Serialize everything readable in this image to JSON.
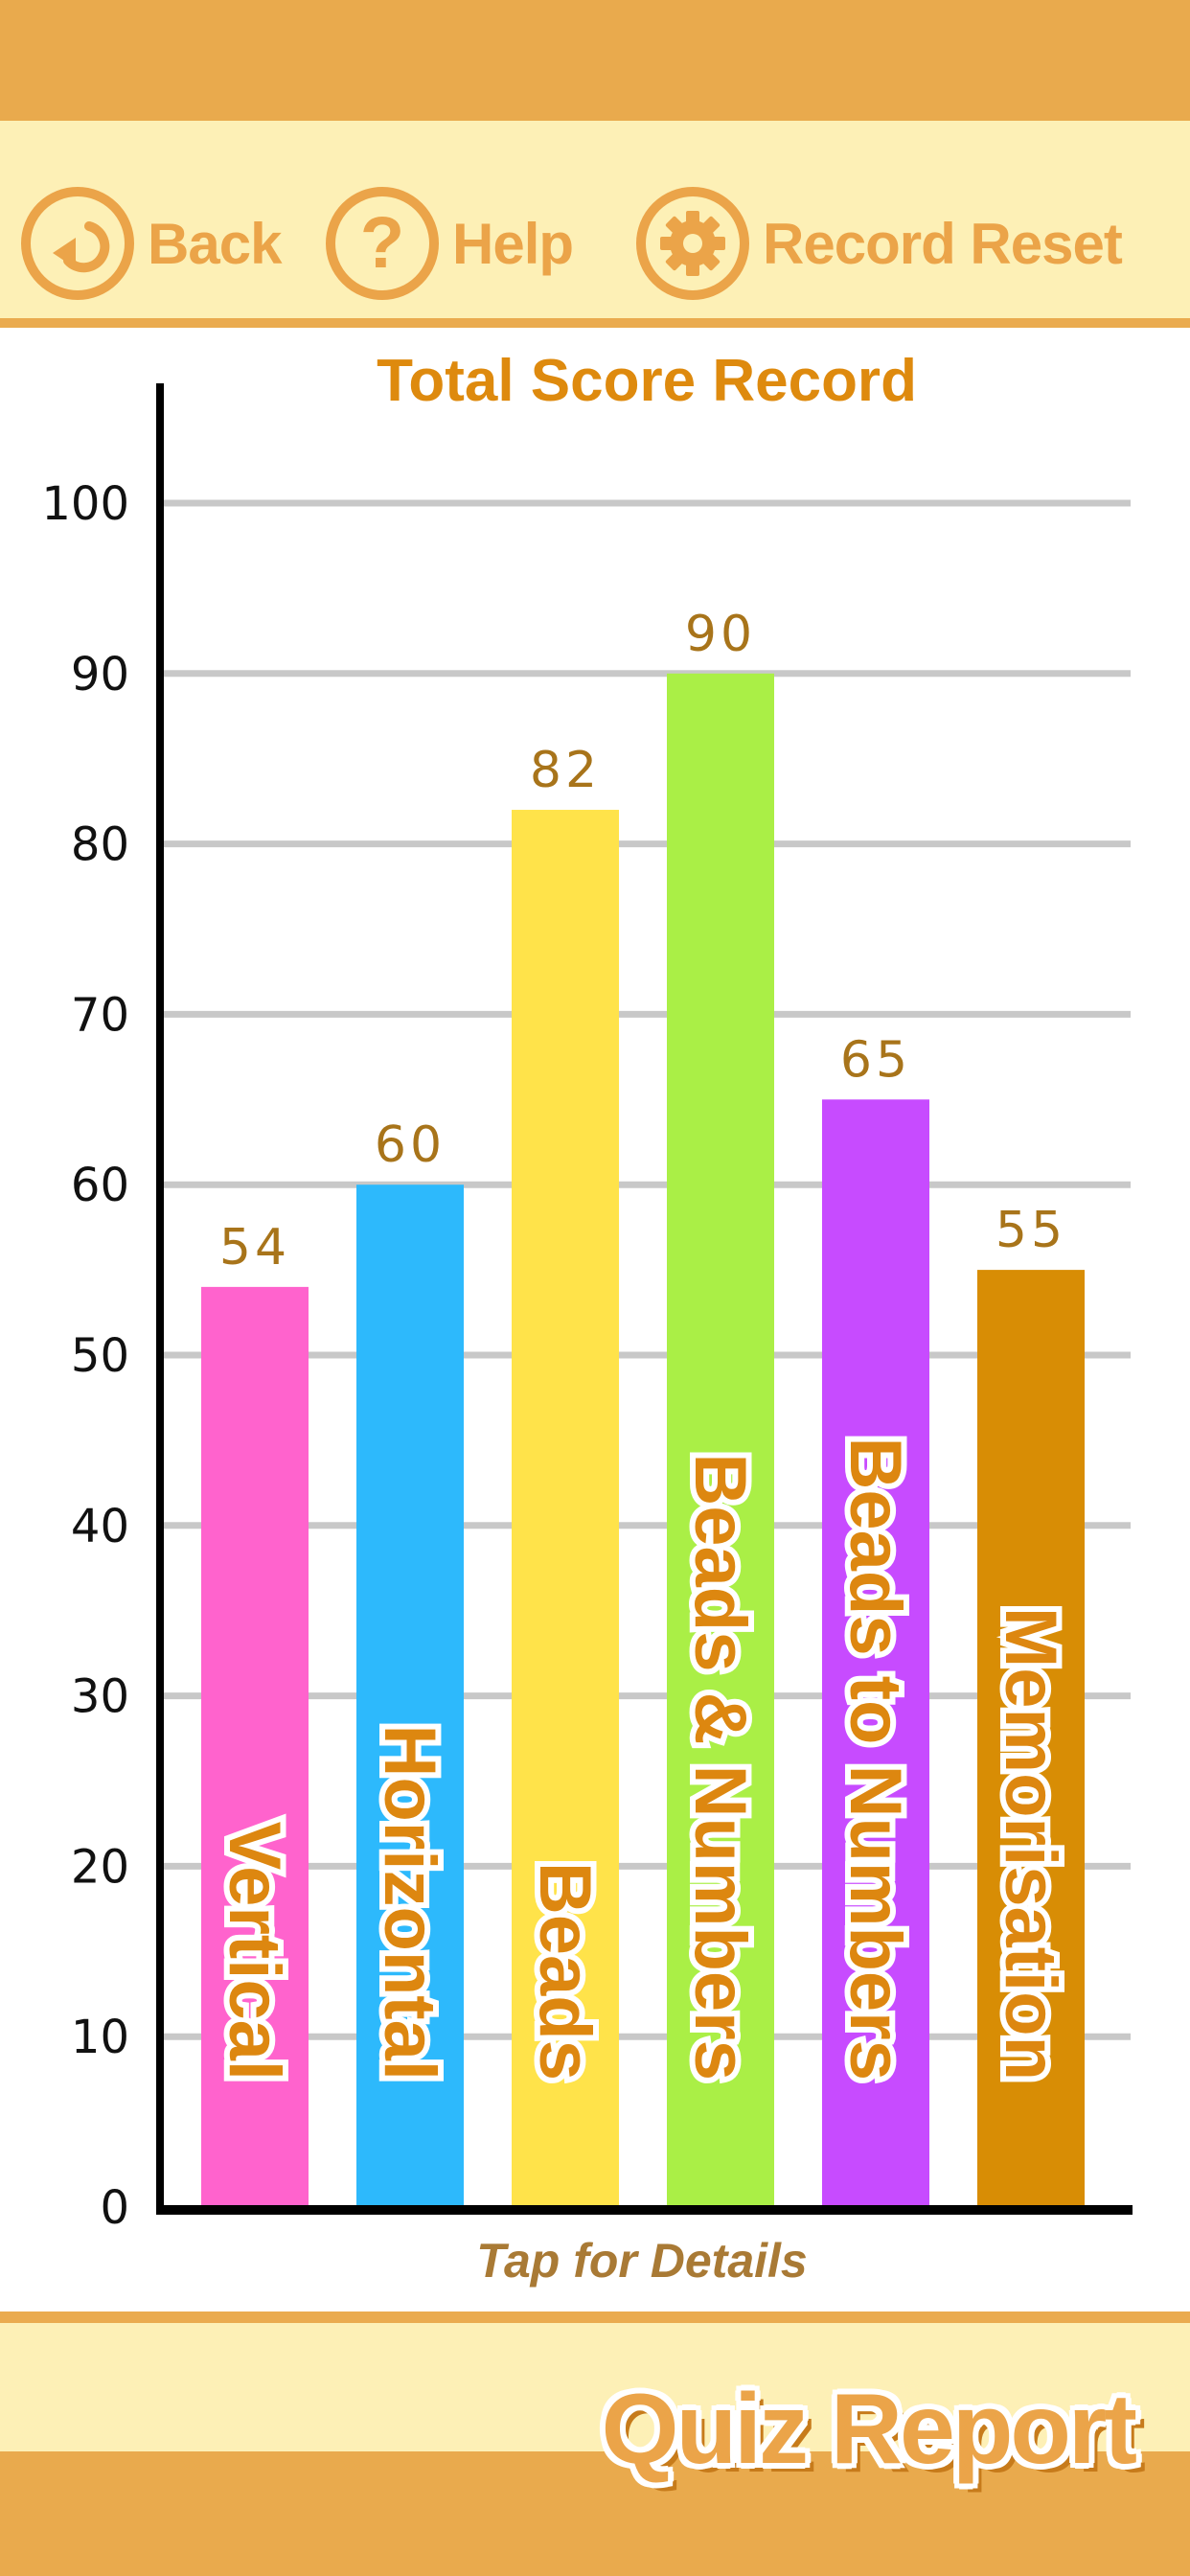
{
  "toolbar": {
    "back_label": "Back",
    "help_label": "Help",
    "reset_label": "Record Reset",
    "back_icon": "back-arrow-icon",
    "help_icon": "question-mark-icon",
    "reset_icon": "gear-icon"
  },
  "footer": {
    "title": "Quiz Report"
  },
  "chart_data": {
    "type": "bar",
    "title": "Total Score Record",
    "xlabel": "Tap for Details",
    "ylabel": "",
    "ylim": [
      0,
      100
    ],
    "yticks": [
      0,
      10,
      20,
      30,
      40,
      50,
      60,
      70,
      80,
      90,
      100
    ],
    "grid": true,
    "categories": [
      "Vertical",
      "Horizontal",
      "Beads",
      "Beads & Numbers",
      "Beads to Numbers",
      "Memorisation"
    ],
    "values": [
      54,
      60,
      82,
      90,
      65,
      55
    ],
    "colors": [
      "#ff63cd",
      "#2db9fc",
      "#ffe34a",
      "#aaef46",
      "#c74bff",
      "#d88d05"
    ],
    "label_color": "#dd8710",
    "value_color": "#a8741a"
  }
}
